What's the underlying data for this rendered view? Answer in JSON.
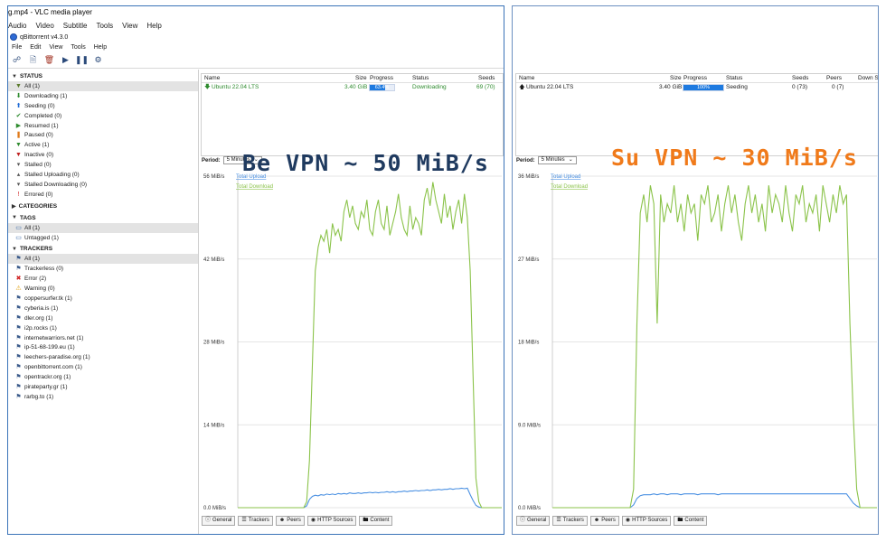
{
  "left": {
    "vlc_title": "g.mp4 - VLC media player",
    "vlc_menu": [
      "Audio",
      "Video",
      "Subtitle",
      "Tools",
      "View",
      "Help"
    ],
    "qb_title": "qBittorrent v4.3.0",
    "qb_menu": [
      "File",
      "Edit",
      "View",
      "Tools",
      "Help"
    ],
    "sidebar": {
      "status_header": "STATUS",
      "status_items": [
        {
          "label": "All (1)",
          "icon": "filter-icon",
          "color": "#5a7a2a",
          "selected": true
        },
        {
          "label": "Downloading (1)",
          "icon": "download-arrow-icon",
          "color": "#2e8b2e"
        },
        {
          "label": "Seeding (0)",
          "icon": "upload-arrow-icon",
          "color": "#1e6ad6"
        },
        {
          "label": "Completed (0)",
          "icon": "checkmark-icon",
          "color": "#2e8b2e"
        },
        {
          "label": "Resumed (1)",
          "icon": "play-icon",
          "color": "#2e8b2e"
        },
        {
          "label": "Paused (0)",
          "icon": "pause-icon",
          "color": "#e07a1a"
        },
        {
          "label": "Active (1)",
          "icon": "filter-icon",
          "color": "#2e8b2e"
        },
        {
          "label": "Inactive (0)",
          "icon": "filter-icon",
          "color": "#c02020"
        },
        {
          "label": "Stalled (0)",
          "icon": "stalled-icon",
          "color": "#555555"
        },
        {
          "label": "Stalled Uploading (0)",
          "icon": "stalled-up-icon",
          "color": "#555555"
        },
        {
          "label": "Stalled Downloading (0)",
          "icon": "stalled-down-icon",
          "color": "#555555"
        },
        {
          "label": "Errored (0)",
          "icon": "error-mark-icon",
          "color": "#d02020"
        }
      ],
      "categories_header": "CATEGORIES",
      "tags_header": "TAGS",
      "tags_items": [
        {
          "label": "All (1)",
          "icon": "folder-open-icon",
          "color": "#3a6aa8",
          "selected": true
        },
        {
          "label": "Untagged (1)",
          "icon": "folder-icon",
          "color": "#3a6aa8"
        }
      ],
      "trackers_header": "TRACKERS",
      "tracker_items": [
        {
          "label": "All (1)",
          "icon": "tracker-icon",
          "color": "#3a5a8a",
          "selected": true
        },
        {
          "label": "Trackerless (0)",
          "icon": "tracker-icon",
          "color": "#3a5a8a"
        },
        {
          "label": "Error (2)",
          "icon": "error-circle-icon",
          "color": "#d02020"
        },
        {
          "label": "Warning (0)",
          "icon": "warning-icon",
          "color": "#e0a010"
        },
        {
          "label": "coppersurfer.tk (1)",
          "icon": "tracker-icon",
          "color": "#3a5a8a"
        },
        {
          "label": "cyberia.is (1)",
          "icon": "tracker-icon",
          "color": "#3a5a8a"
        },
        {
          "label": "dler.org (1)",
          "icon": "tracker-icon",
          "color": "#3a5a8a"
        },
        {
          "label": "i2p.rocks (1)",
          "icon": "tracker-icon",
          "color": "#3a5a8a"
        },
        {
          "label": "internetwarriors.net (1)",
          "icon": "tracker-icon",
          "color": "#3a5a8a"
        },
        {
          "label": "ip-51-68-199.eu (1)",
          "icon": "tracker-icon",
          "color": "#3a5a8a"
        },
        {
          "label": "leechers-paradise.org (1)",
          "icon": "tracker-icon",
          "color": "#3a5a8a"
        },
        {
          "label": "openbittorrent.com (1)",
          "icon": "tracker-icon",
          "color": "#3a5a8a"
        },
        {
          "label": "opentrackr.org (1)",
          "icon": "tracker-icon",
          "color": "#3a5a8a"
        },
        {
          "label": "pirateparty.gr (1)",
          "icon": "tracker-icon",
          "color": "#3a5a8a"
        },
        {
          "label": "rarbg.to (1)",
          "icon": "tracker-icon",
          "color": "#3a5a8a"
        }
      ]
    },
    "torrent_list": {
      "columns": [
        "Name",
        "Size",
        "Progress",
        "Status",
        "Seeds"
      ],
      "row": {
        "name": "Ubuntu 22.04 LTS",
        "size": "3.40 GiB",
        "progress": 0.634,
        "progress_label": "63.4%",
        "status": "Downloading",
        "seeds": "69 (70)",
        "icon": "download-arrow-icon"
      }
    },
    "period_label": "Period:",
    "period_value": "5 Minutes",
    "graph": {
      "legend_upload": "Total Upload",
      "legend_download": "Total Download",
      "y_ticks": [
        "56 MiB/s",
        "42 MiB/s",
        "28 MiB/s",
        "14 MiB/s",
        "0.0 MiB/s"
      ],
      "y_max": 56,
      "download": [
        0,
        0,
        0,
        0,
        0,
        0,
        0,
        0,
        0,
        0,
        0,
        0,
        0,
        0,
        0,
        0,
        0,
        0,
        0,
        0,
        0,
        0,
        0,
        0,
        1,
        8,
        24,
        40,
        44,
        46,
        45,
        47,
        43,
        48,
        46,
        47,
        45,
        50,
        52,
        49,
        51,
        48,
        47,
        50,
        49,
        52,
        47,
        46,
        50,
        52,
        48,
        47,
        51,
        46,
        48,
        50,
        53,
        49,
        47,
        46,
        51,
        47,
        49,
        48,
        46,
        52,
        54,
        51,
        55,
        52,
        50,
        48,
        53,
        49,
        51,
        47,
        50,
        52,
        48,
        53,
        49,
        40,
        22,
        5,
        1,
        0,
        0,
        0,
        0,
        0,
        0,
        0,
        0
      ],
      "upload": [
        0,
        0,
        0,
        0,
        0,
        0,
        0,
        0,
        0,
        0,
        0,
        0,
        0,
        0,
        0,
        0,
        0,
        0,
        0,
        0,
        0,
        0,
        0,
        0,
        0.3,
        1.4,
        1.9,
        2.1,
        2.0,
        2.2,
        2.1,
        2.3,
        2.2,
        2.3,
        2.2,
        2.4,
        2.3,
        2.4,
        2.3,
        2.5,
        2.4,
        2.4,
        2.5,
        2.4,
        2.5,
        2.5,
        2.6,
        2.5,
        2.6,
        2.5,
        2.6,
        2.6,
        2.7,
        2.6,
        2.7,
        2.6,
        2.7,
        2.7,
        2.8,
        2.7,
        2.8,
        2.8,
        2.9,
        2.8,
        2.9,
        2.9,
        3.0,
        2.9,
        3.0,
        3.0,
        3.1,
        3.0,
        3.1,
        3.1,
        3.2,
        3.1,
        3.2,
        3.2,
        3.3,
        3.2,
        3.3,
        2.2,
        1.2,
        0.4,
        0.1,
        0,
        0,
        0,
        0,
        0,
        0,
        0,
        0
      ]
    },
    "tabs": [
      "General",
      "Trackers",
      "Peers",
      "HTTP Sources",
      "Content"
    ],
    "tab_icons": [
      "info-icon",
      "tracker-icon",
      "peers-icon",
      "globe-icon",
      "folder-icon"
    ],
    "overlay": "Be VPN ~ 50 MiB/s"
  },
  "right": {
    "torrent_list": {
      "columns": [
        "Name",
        "Size",
        "Progress",
        "Status",
        "Seeds",
        "Peers",
        "Down S"
      ],
      "row": {
        "name": "Ubuntu 22.04 LTS",
        "size": "3.40 GiB",
        "progress": 1.0,
        "progress_label": "100%",
        "status": "Seeding",
        "seeds": "0 (73)",
        "peers": "0 (7)",
        "icon": "upload-arrow-icon"
      }
    },
    "period_label": "Period:",
    "period_value": "5 Minutes",
    "graph": {
      "legend_upload": "Total Upload",
      "legend_download": "Total Download",
      "y_ticks": [
        "36 MiB/s",
        "27 MiB/s",
        "18 MiB/s",
        "9.0 MiB/s",
        "0.0 MiB/s"
      ],
      "y_max": 36,
      "download": [
        0,
        0,
        0,
        0,
        0,
        0,
        0,
        0,
        0,
        0,
        0,
        0,
        0,
        0,
        0,
        0,
        0,
        0,
        0,
        0,
        0,
        0,
        0,
        0,
        2,
        20,
        32,
        34,
        31,
        35,
        33,
        20,
        34,
        31,
        33,
        32,
        35,
        31,
        33,
        30,
        34,
        32,
        33,
        29,
        34,
        33,
        35,
        31,
        32,
        34,
        30,
        33,
        35,
        32,
        34,
        31,
        29,
        33,
        35,
        32,
        34,
        31,
        33,
        30,
        35,
        32,
        34,
        33,
        31,
        35,
        32,
        30,
        34,
        33,
        35,
        31,
        33,
        32,
        34,
        30,
        35,
        33,
        31,
        34,
        32,
        35,
        33,
        34,
        20,
        10,
        2,
        0,
        0,
        0,
        0,
        0,
        0
      ],
      "upload": [
        0,
        0,
        0,
        0,
        0,
        0,
        0,
        0,
        0,
        0,
        0,
        0,
        0,
        0,
        0,
        0,
        0,
        0,
        0,
        0,
        0,
        0,
        0,
        0,
        0.3,
        1.0,
        1.3,
        1.4,
        1.4,
        1.4,
        1.5,
        1.4,
        1.5,
        1.5,
        1.4,
        1.5,
        1.5,
        1.5,
        1.4,
        1.5,
        1.5,
        1.5,
        1.5,
        1.4,
        1.5,
        1.5,
        1.5,
        1.5,
        1.5,
        1.4,
        1.5,
        1.5,
        1.5,
        1.5,
        1.5,
        1.5,
        1.5,
        1.5,
        1.5,
        1.5,
        1.5,
        1.5,
        1.5,
        1.5,
        1.5,
        1.5,
        1.5,
        1.5,
        1.5,
        1.5,
        1.5,
        1.5,
        1.5,
        1.5,
        1.5,
        1.5,
        1.5,
        1.5,
        1.5,
        1.5,
        1.5,
        1.5,
        1.5,
        1.5,
        1.5,
        1.5,
        1.5,
        1.5,
        1.0,
        0.5,
        0.2,
        0,
        0,
        0,
        0,
        0,
        0
      ]
    },
    "tabs": [
      "General",
      "Trackers",
      "Peers",
      "HTTP Sources",
      "Content"
    ],
    "tab_icons": [
      "info-icon",
      "tracker-icon",
      "peers-icon",
      "globe-icon",
      "folder-icon"
    ],
    "overlay": "Su VPN ~ 30 MiB/s"
  },
  "colors": {
    "download_line": "#8bc34a",
    "upload_line": "#4a90e2",
    "grid": "#dcdcdc",
    "overlay_left": "#1f3a5f",
    "overlay_right": "#f07a1a"
  }
}
